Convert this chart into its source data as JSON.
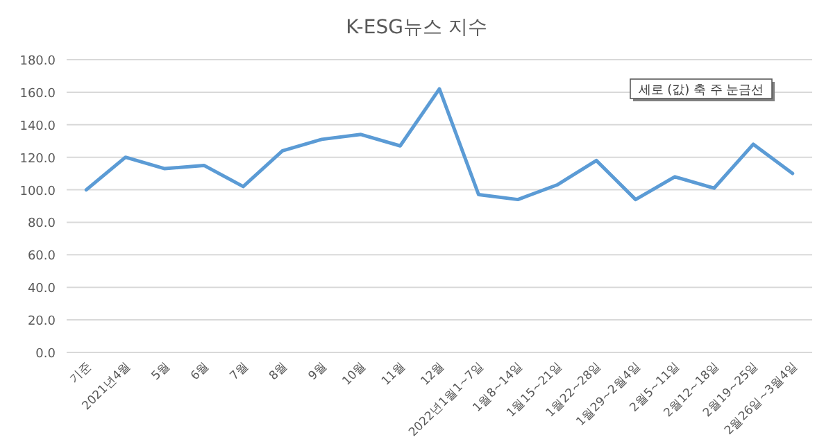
{
  "chart_data": {
    "type": "line",
    "title": "K-ESG뉴스 지수",
    "categories": [
      "기준",
      "2021년4월",
      "5월",
      "6월",
      "7월",
      "8월",
      "9월",
      "10월",
      "11월",
      "12월",
      "2022년1월1~7일",
      "1월8~14일",
      "1월15~21일",
      "1월22~28일",
      "1월29~2월4일",
      "2월5~11일",
      "2월12~18일",
      "2월19~25일",
      "2월26일~3월4일"
    ],
    "series": [
      {
        "color": "#5b9bd5",
        "values": [
          100,
          120,
          113,
          115,
          102,
          124,
          131,
          134,
          127,
          162,
          97,
          94,
          103,
          118,
          94,
          108,
          101,
          128,
          110
        ]
      }
    ],
    "ylim": [
      0,
      180
    ],
    "yticks": [
      {
        "value": 0,
        "label": "0.0"
      },
      {
        "value": 20,
        "label": "20.0"
      },
      {
        "value": 40,
        "label": "40.0"
      },
      {
        "value": 60,
        "label": "60.0"
      },
      {
        "value": 80,
        "label": "80.0"
      },
      {
        "value": 100,
        "label": "100.0"
      },
      {
        "value": 120,
        "label": "120.0"
      },
      {
        "value": 140,
        "label": "140.0"
      },
      {
        "value": 160,
        "label": "160.0"
      },
      {
        "value": 180,
        "label": "180.0"
      }
    ],
    "grid": "y",
    "marker": "none",
    "line_style": "solid",
    "annotations": [
      "세로 (값) 축 주 눈금선"
    ]
  }
}
